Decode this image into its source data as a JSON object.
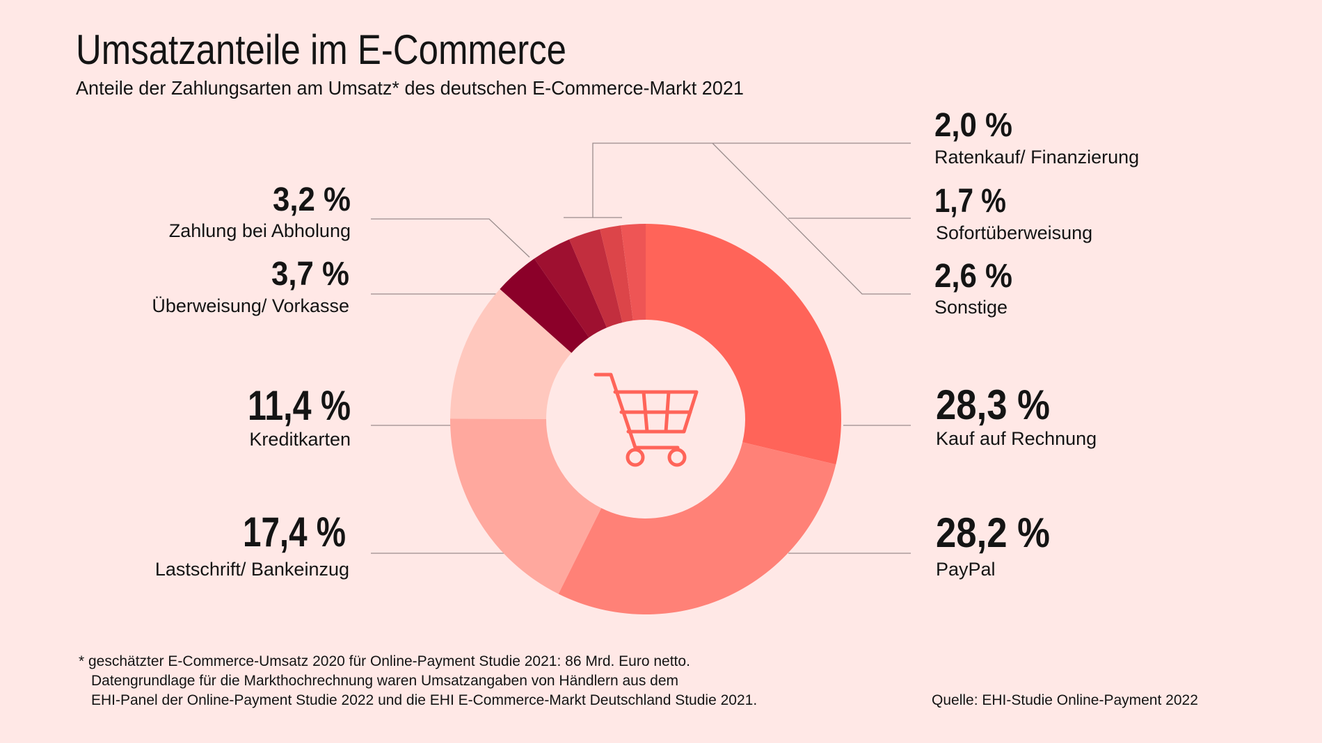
{
  "title": "Umsatzanteile im E-Commerce",
  "subtitle": "Anteile der Zahlungsarten am Umsatz* des deutschen E-Commerce-Markt 2021",
  "center_icon": "shopping-cart-icon",
  "colors": {
    "background": "#FFE8E6",
    "icon": "#FF6459"
  },
  "chart_data": {
    "type": "pie",
    "variant": "donut",
    "title": "Umsatzanteile im E-Commerce",
    "subtitle": "Anteile der Zahlungsarten am Umsatz* des deutschen E-Commerce-Markt 2021",
    "unit": "%",
    "slices": [
      {
        "label": "Kauf auf Rechnung",
        "value": 28.3,
        "display": "28,3 %",
        "color": "#FF6459"
      },
      {
        "label": "PayPal",
        "value": 28.2,
        "display": "28,2 %",
        "color": "#FF8177"
      },
      {
        "label": "Lastschrift/ Bankeinzug",
        "value": 17.4,
        "display": "17,4 %",
        "color": "#FFA89E"
      },
      {
        "label": "Kreditkarten",
        "value": 11.4,
        "display": "11,4 %",
        "color": "#FFC8BE"
      },
      {
        "label": "Überweisung/ Vorkasse",
        "value": 3.7,
        "display": "3,7 %",
        "color": "#8B0029"
      },
      {
        "label": "Zahlung bei Abholung",
        "value": 3.2,
        "display": "3,2 %",
        "color": "#9E1030"
      },
      {
        "label": "Sonstige",
        "value": 2.6,
        "display": "2,6 %",
        "color": "#C22E3E"
      },
      {
        "label": "Sofortüberweisung",
        "value": 1.7,
        "display": "1,7 %",
        "color": "#DC4549"
      },
      {
        "label": "Ratenkauf/ Finanzierung",
        "value": 2.0,
        "display": "2,0 %",
        "color": "#EE5555"
      }
    ]
  },
  "footnote": [
    "* geschätzter E-Commerce-Umsatz 2020 für Online-Payment Studie 2021: 86 Mrd. Euro netto.",
    "Datengrundlage für die Markthochrechnung waren Umsatzangaben von Händlern aus dem",
    "EHI-Panel der Online-Payment Studie 2022 und die EHI E-Commerce-Markt Deutschland Studie 2021."
  ],
  "source": "Quelle: EHI-Studie Online-Payment 2022"
}
